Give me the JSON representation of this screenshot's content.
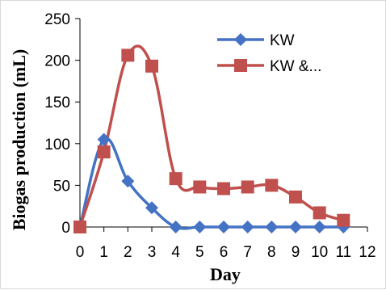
{
  "chart_data": {
    "type": "line",
    "title": "",
    "xlabel": "Day",
    "ylabel": "Biogas production (mL)",
    "x": [
      0,
      1,
      2,
      3,
      4,
      5,
      6,
      7,
      8,
      9,
      10,
      11
    ],
    "xlim": [
      0,
      12
    ],
    "ylim": [
      0,
      250
    ],
    "xticks": [
      "0",
      "1",
      "2",
      "3",
      "4",
      "5",
      "6",
      "7",
      "8",
      "9",
      "10",
      "11",
      "12"
    ],
    "yticks": [
      "0",
      "50",
      "100",
      "150",
      "200",
      "250"
    ],
    "grid": false,
    "legend": "top-right",
    "smooth": true,
    "series": [
      {
        "name": "KW",
        "color": "#4472c4",
        "marker": "diamond",
        "values": [
          0,
          105,
          55,
          23,
          0,
          0,
          0,
          0,
          0,
          0,
          0,
          0
        ]
      },
      {
        "name": "KW &...",
        "color": "#c0504d",
        "marker": "square",
        "values": [
          0,
          90,
          206,
          193,
          58,
          48,
          46,
          48,
          50,
          36,
          17,
          8
        ]
      }
    ]
  }
}
